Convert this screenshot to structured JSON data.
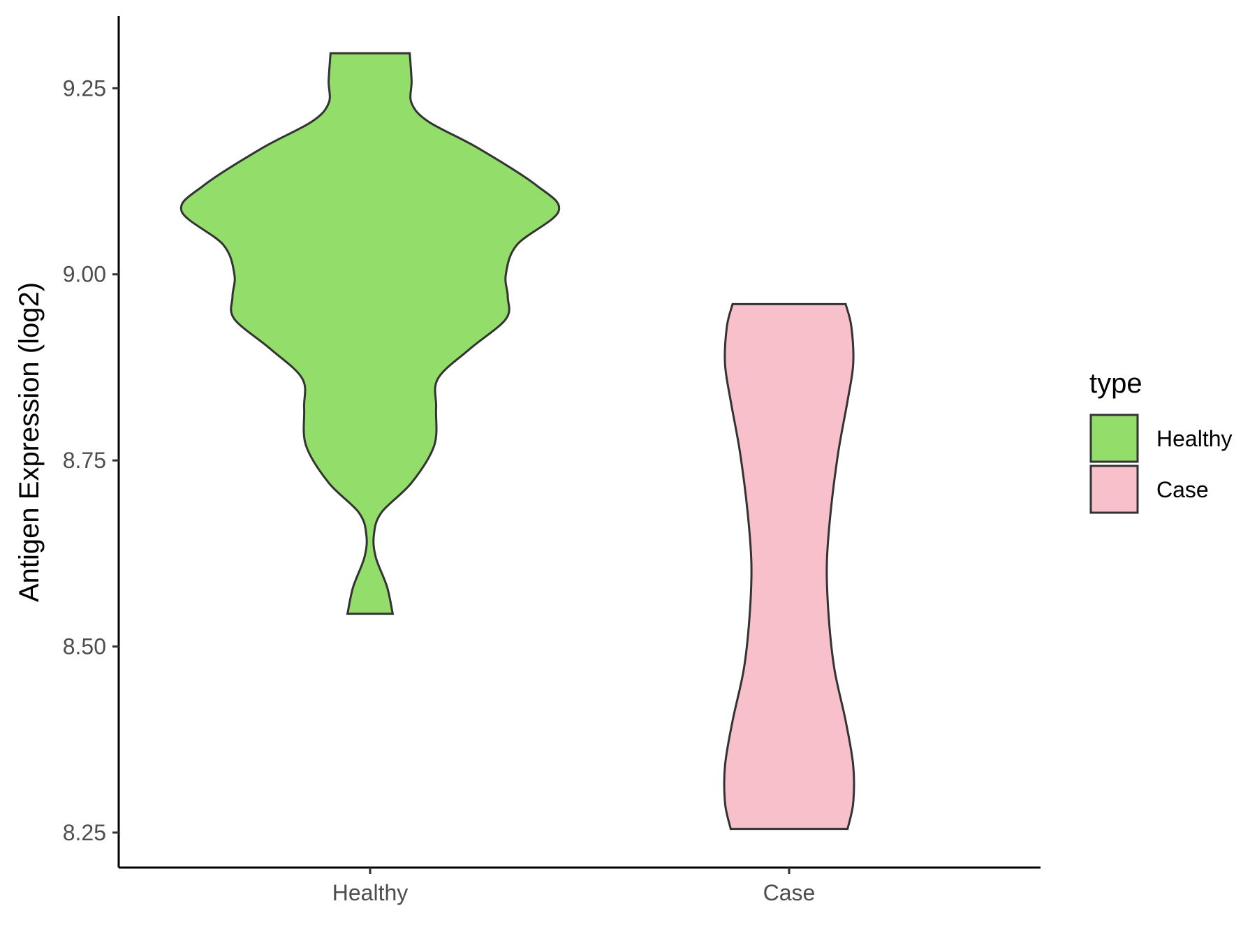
{
  "chart_data": {
    "type": "violin",
    "ylabel": "Antigen Expression (log2)",
    "xlabel": "",
    "categories": [
      "Healthy",
      "Case"
    ],
    "ylim": [
      8.203,
      9.347
    ],
    "yticks": [
      "8.25",
      "8.50",
      "8.75",
      "9.00",
      "9.25"
    ],
    "ytick_values": [
      8.25,
      8.5,
      8.75,
      9.0,
      9.25
    ],
    "grid": false,
    "legend": {
      "title": "type",
      "placement": "right",
      "entries": [
        {
          "label": "Healthy",
          "color": "#93DD6A"
        },
        {
          "label": "Case",
          "color": "#F7C0CB"
        }
      ]
    },
    "series": [
      {
        "name": "Healthy",
        "color": "#93DD6A",
        "min": 8.544,
        "max": 9.297,
        "profile": [
          [
            8.544,
            0.12
          ],
          [
            8.58,
            0.09
          ],
          [
            8.62,
            0.03
          ],
          [
            8.65,
            0.02
          ],
          [
            8.68,
            0.06
          ],
          [
            8.72,
            0.22
          ],
          [
            8.77,
            0.34
          ],
          [
            8.82,
            0.35
          ],
          [
            8.86,
            0.36
          ],
          [
            8.9,
            0.53
          ],
          [
            8.94,
            0.72
          ],
          [
            8.97,
            0.73
          ],
          [
            9.0,
            0.72
          ],
          [
            9.04,
            0.78
          ],
          [
            9.085,
            1.0
          ],
          [
            9.12,
            0.88
          ],
          [
            9.17,
            0.57
          ],
          [
            9.205,
            0.31
          ],
          [
            9.23,
            0.22
          ],
          [
            9.26,
            0.22
          ],
          [
            9.297,
            0.21
          ]
        ]
      },
      {
        "name": "Case",
        "color": "#F7C0CB",
        "min": 8.255,
        "max": 8.96,
        "profile": [
          [
            8.255,
            0.31
          ],
          [
            8.29,
            0.34
          ],
          [
            8.34,
            0.34
          ],
          [
            8.4,
            0.3
          ],
          [
            8.47,
            0.24
          ],
          [
            8.54,
            0.21
          ],
          [
            8.61,
            0.2
          ],
          [
            8.68,
            0.22
          ],
          [
            8.76,
            0.26
          ],
          [
            8.83,
            0.31
          ],
          [
            8.88,
            0.34
          ],
          [
            8.93,
            0.33
          ],
          [
            8.96,
            0.3
          ]
        ]
      }
    ]
  }
}
